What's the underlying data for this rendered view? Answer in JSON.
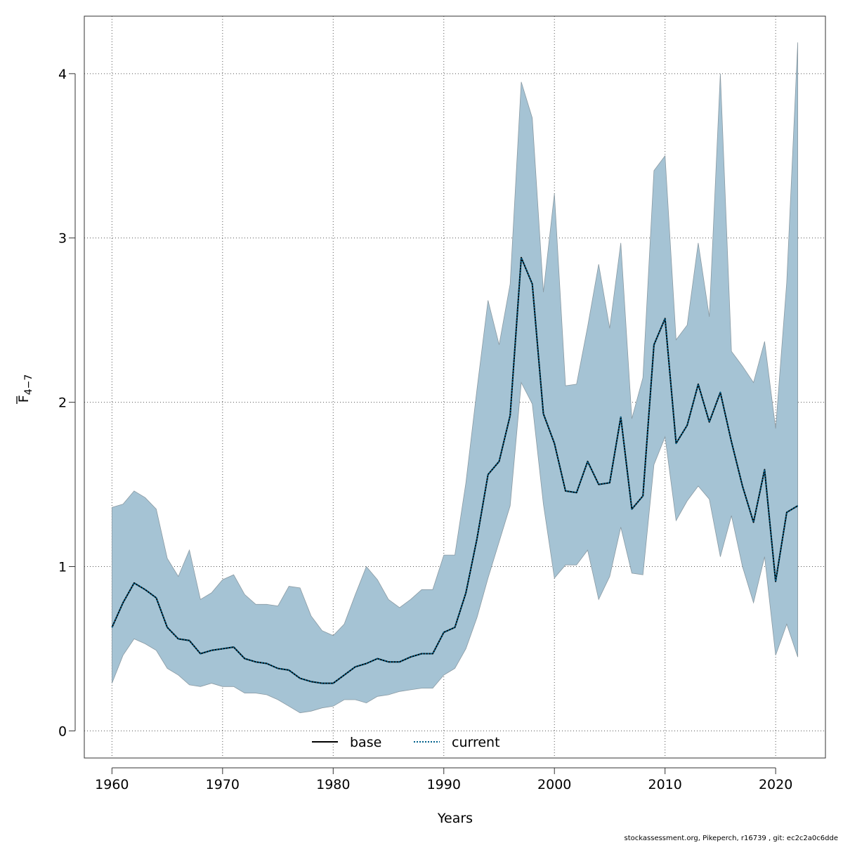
{
  "chart_data": {
    "type": "line",
    "xlabel": "Years",
    "ylabel": "F",
    "ylabel_bar": "F",
    "ylabel_sub": "4−7",
    "xlim": [
      1957.5,
      2024.5
    ],
    "ylim": [
      -0.165,
      4.35
    ],
    "x_ticks": [
      1960,
      1970,
      1980,
      1990,
      2000,
      2010,
      2020
    ],
    "y_ticks": [
      0,
      1,
      2,
      3,
      4
    ],
    "grid": true,
    "legend_position": "bottom",
    "colors": {
      "band_fill": "#a5c3d4",
      "band_edge": "#8a9aa3",
      "current_line": "#00608a",
      "base_line": "#000000",
      "grid": "#555555"
    },
    "x": [
      1960,
      1961,
      1962,
      1963,
      1964,
      1965,
      1966,
      1967,
      1968,
      1969,
      1970,
      1971,
      1972,
      1973,
      1974,
      1975,
      1976,
      1977,
      1978,
      1979,
      1980,
      1981,
      1982,
      1983,
      1984,
      1985,
      1986,
      1987,
      1988,
      1989,
      1990,
      1991,
      1992,
      1993,
      1994,
      1995,
      1996,
      1997,
      1998,
      1999,
      2000,
      2001,
      2002,
      2003,
      2004,
      2005,
      2006,
      2007,
      2008,
      2009,
      2010,
      2011,
      2012,
      2013,
      2014,
      2015,
      2016,
      2017,
      2018,
      2019,
      2020,
      2021,
      2022
    ],
    "series": [
      {
        "name": "base",
        "style": "solid",
        "values": [
          0.63,
          0.78,
          0.9,
          0.86,
          0.81,
          0.63,
          0.56,
          0.55,
          0.47,
          0.49,
          0.5,
          0.51,
          0.44,
          0.42,
          0.41,
          0.38,
          0.37,
          0.32,
          0.3,
          0.29,
          0.29,
          0.34,
          0.39,
          0.41,
          0.44,
          0.42,
          0.42,
          0.45,
          0.47,
          0.47,
          0.6,
          0.63,
          0.84,
          1.17,
          1.56,
          1.64,
          1.92,
          2.88,
          2.72,
          1.93,
          1.75,
          1.46,
          1.45,
          1.64,
          1.5,
          1.51,
          1.91,
          1.35,
          1.43,
          2.35,
          2.51,
          1.75,
          1.86,
          2.11,
          1.88,
          2.06,
          1.76,
          1.49,
          1.27,
          1.59,
          0.91,
          1.33,
          1.37
        ]
      },
      {
        "name": "current",
        "style": "dotted",
        "values": [
          0.63,
          0.78,
          0.9,
          0.86,
          0.81,
          0.63,
          0.56,
          0.55,
          0.47,
          0.49,
          0.5,
          0.51,
          0.44,
          0.42,
          0.41,
          0.38,
          0.37,
          0.32,
          0.3,
          0.29,
          0.29,
          0.34,
          0.39,
          0.41,
          0.44,
          0.42,
          0.42,
          0.45,
          0.47,
          0.47,
          0.6,
          0.63,
          0.84,
          1.17,
          1.56,
          1.64,
          1.92,
          2.88,
          2.72,
          1.93,
          1.75,
          1.46,
          1.45,
          1.64,
          1.5,
          1.51,
          1.91,
          1.35,
          1.43,
          2.35,
          2.51,
          1.75,
          1.86,
          2.11,
          1.88,
          2.06,
          1.76,
          1.49,
          1.27,
          1.59,
          0.91,
          1.33,
          1.37
        ]
      }
    ],
    "band": {
      "lower": [
        0.29,
        0.46,
        0.56,
        0.53,
        0.49,
        0.38,
        0.34,
        0.28,
        0.27,
        0.29,
        0.27,
        0.27,
        0.23,
        0.23,
        0.22,
        0.19,
        0.15,
        0.11,
        0.12,
        0.14,
        0.15,
        0.19,
        0.19,
        0.17,
        0.21,
        0.22,
        0.24,
        0.25,
        0.26,
        0.26,
        0.34,
        0.38,
        0.5,
        0.69,
        0.93,
        1.15,
        1.37,
        2.12,
        1.99,
        1.38,
        0.93,
        1.01,
        1.01,
        1.1,
        0.8,
        0.94,
        1.24,
        0.96,
        0.95,
        1.62,
        1.79,
        1.28,
        1.4,
        1.49,
        1.41,
        1.06,
        1.31,
        1.0,
        0.78,
        1.06,
        0.46,
        0.65,
        0.45
      ],
      "upper": [
        1.36,
        1.38,
        1.46,
        1.42,
        1.35,
        1.05,
        0.94,
        1.1,
        0.8,
        0.84,
        0.92,
        0.95,
        0.83,
        0.77,
        0.77,
        0.76,
        0.88,
        0.87,
        0.7,
        0.61,
        0.58,
        0.65,
        0.83,
        1.0,
        0.92,
        0.8,
        0.75,
        0.8,
        0.86,
        0.86,
        1.07,
        1.07,
        1.51,
        2.08,
        2.62,
        2.35,
        2.72,
        3.95,
        3.73,
        2.67,
        3.27,
        2.1,
        2.11,
        2.46,
        2.84,
        2.45,
        2.97,
        1.9,
        2.15,
        3.41,
        3.5,
        2.38,
        2.47,
        2.97,
        2.52,
        4.0,
        2.31,
        2.22,
        2.12,
        2.37,
        1.84,
        2.73,
        4.19
      ]
    }
  },
  "legend": {
    "items": [
      {
        "label": "base"
      },
      {
        "label": "current"
      }
    ]
  },
  "footer": "stockassessment.org, Pikeperch, r16739 , git: ec2c2a0c6dde"
}
